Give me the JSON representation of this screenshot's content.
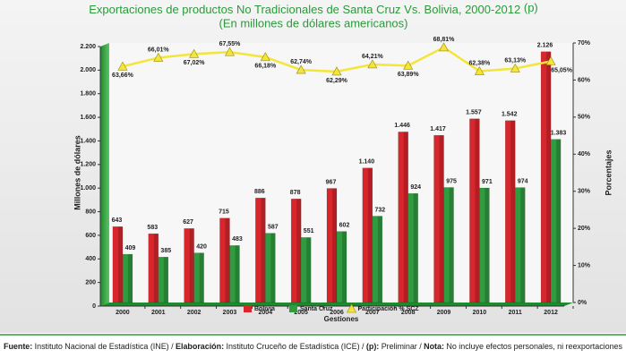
{
  "chart_data": {
    "type": "bar_line",
    "title": "Exportaciones de productos No Tradicionales de Santa Cruz Vs. Bolivia, 2000-2012",
    "title_note": "(p)",
    "subtitle": "(En millones de dólares americanos)",
    "y_label": "Millones de dólares",
    "y2_label": "Porcentajes",
    "x_label": "Gestiones",
    "categories": [
      "2000",
      "2001",
      "2002",
      "2003",
      "2004",
      "2005",
      "2006",
      "2007",
      "2008",
      "2009",
      "2010",
      "2011",
      "2012"
    ],
    "series": [
      {
        "name": "Bolivia",
        "color": "#d8262d",
        "type": "bar",
        "values": [
          643,
          583,
          627,
          715,
          886,
          878,
          967,
          1140,
          1446,
          1417,
          1557,
          1542,
          2126
        ],
        "value_labels": [
          "643",
          "583",
          "627",
          "715",
          "886",
          "878",
          "967",
          "1.140",
          "1.446",
          "1.417",
          "1.557",
          "1.542",
          "2.126"
        ]
      },
      {
        "name": "Santa Cruz",
        "color": "#2f9c3f",
        "type": "bar",
        "values": [
          409,
          385,
          420,
          483,
          587,
          551,
          602,
          732,
          924,
          975,
          971,
          974,
          1383
        ],
        "value_labels": [
          "409",
          "385",
          "420",
          "483",
          "587",
          "551",
          "602",
          "732",
          "924",
          "975",
          "971",
          "974",
          "1.383"
        ]
      },
      {
        "name": "Participación % SCZ",
        "color": "#f3e53a",
        "type": "line",
        "axis": "y2",
        "values": [
          63.66,
          66.01,
          67.02,
          67.55,
          66.18,
          62.74,
          62.29,
          64.21,
          63.89,
          68.81,
          62.38,
          63.13,
          65.05
        ],
        "value_labels": [
          "63,66%",
          "66,01%",
          "67,02%",
          "67,55%",
          "66,18%",
          "62,74%",
          "62,29%",
          "64,21%",
          "63,89%",
          "68,81%",
          "62,38%",
          "63,13%",
          "65,05%"
        ]
      }
    ],
    "ylim": [
      0,
      2200
    ],
    "yticks": [
      0,
      200,
      400,
      600,
      800,
      {
        "value": 1000,
        "label": "1.000"
      },
      {
        "value": 1200,
        "label": "1.200"
      },
      {
        "value": 1400,
        "label": "1.400"
      },
      {
        "value": 1600,
        "label": "1.600"
      },
      {
        "value": 1800,
        "label": "1.800"
      },
      {
        "value": 2000,
        "label": "2.000"
      },
      {
        "value": 2200,
        "label": "2.200"
      }
    ],
    "y2lim": [
      0,
      70
    ],
    "y2ticks": [
      {
        "value": 0,
        "label": "0%"
      },
      {
        "value": 10,
        "label": "10%"
      },
      {
        "value": 20,
        "label": "20%"
      },
      {
        "value": 30,
        "label": "30%"
      },
      {
        "value": 40,
        "label": "40%"
      },
      {
        "value": 50,
        "label": "50%"
      },
      {
        "value": 60,
        "label": "60%"
      },
      {
        "value": 70,
        "label": "70%"
      }
    ],
    "grid": false,
    "legend": "bottom"
  },
  "footer": [
    {
      "text": "Fuente:",
      "bold": true
    },
    {
      "text": " Instituto Nacional de Estadística (INE) / ",
      "bold": false
    },
    {
      "text": "Elaboración:",
      "bold": true
    },
    {
      "text": " Instituto Cruceño de Estadística (ICE) / ",
      "bold": false
    },
    {
      "text": "(p):",
      "bold": true
    },
    {
      "text": " Preliminar / ",
      "bold": false
    },
    {
      "text": "Nota:",
      "bold": true
    },
    {
      "text": " No incluye efectos personales, ni reexportaciones",
      "bold": false
    }
  ]
}
